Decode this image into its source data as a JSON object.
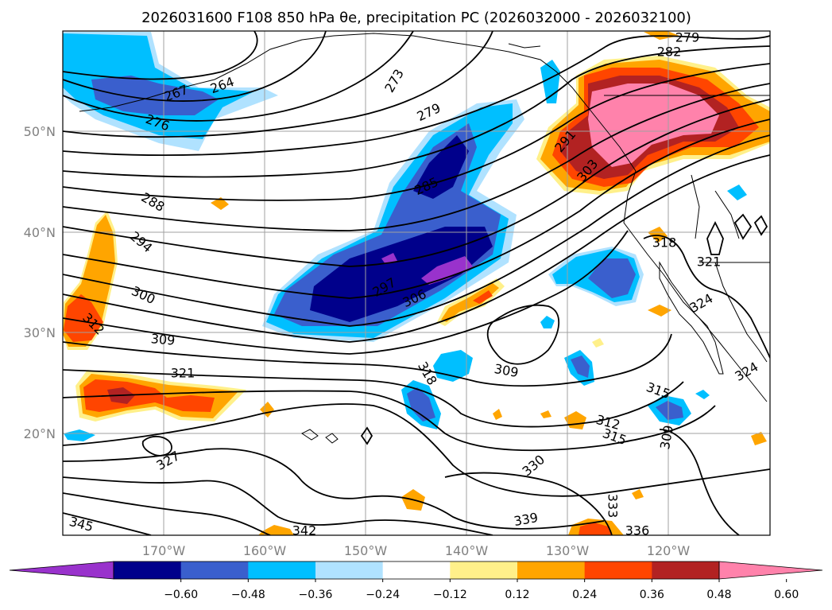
{
  "figure": {
    "title": "2026031600 F108 850 hPa θe, precipitation PC (2026032000 - 2026032100)"
  },
  "map": {
    "lon_range": [
      -178,
      -108
    ],
    "lat_range": [
      10,
      60
    ],
    "lat_labels": [
      "20°N",
      "30°N",
      "40°N",
      "50°N"
    ],
    "lon_labels": [
      "170°W",
      "160°W",
      "150°W",
      "140°W",
      "130°W",
      "120°W"
    ],
    "contour_labels": [
      "279",
      "282",
      "267",
      "264",
      "273",
      "276",
      "279",
      "285",
      "291",
      "303",
      "288",
      "294",
      "297",
      "306",
      "300",
      "312",
      "309",
      "318",
      "321",
      "309",
      "318",
      "321",
      "324",
      "324",
      "315",
      "312",
      "315",
      "309",
      "327",
      "330",
      "333",
      "339",
      "336",
      "342",
      "345"
    ]
  },
  "colorbar": {
    "ticks": [
      "−0.60",
      "−0.48",
      "−0.36",
      "−0.24",
      "−0.12",
      "0.12",
      "0.24",
      "0.36",
      "0.48",
      "0.60"
    ],
    "colors": [
      "#9932cc",
      "#00008b",
      "#3a5fcd",
      "#00bfff",
      "#b0e2ff",
      "#ffffff",
      "#fff08a",
      "#ffa500",
      "#ff4500",
      "#b22222",
      "#ff82ab"
    ]
  }
}
